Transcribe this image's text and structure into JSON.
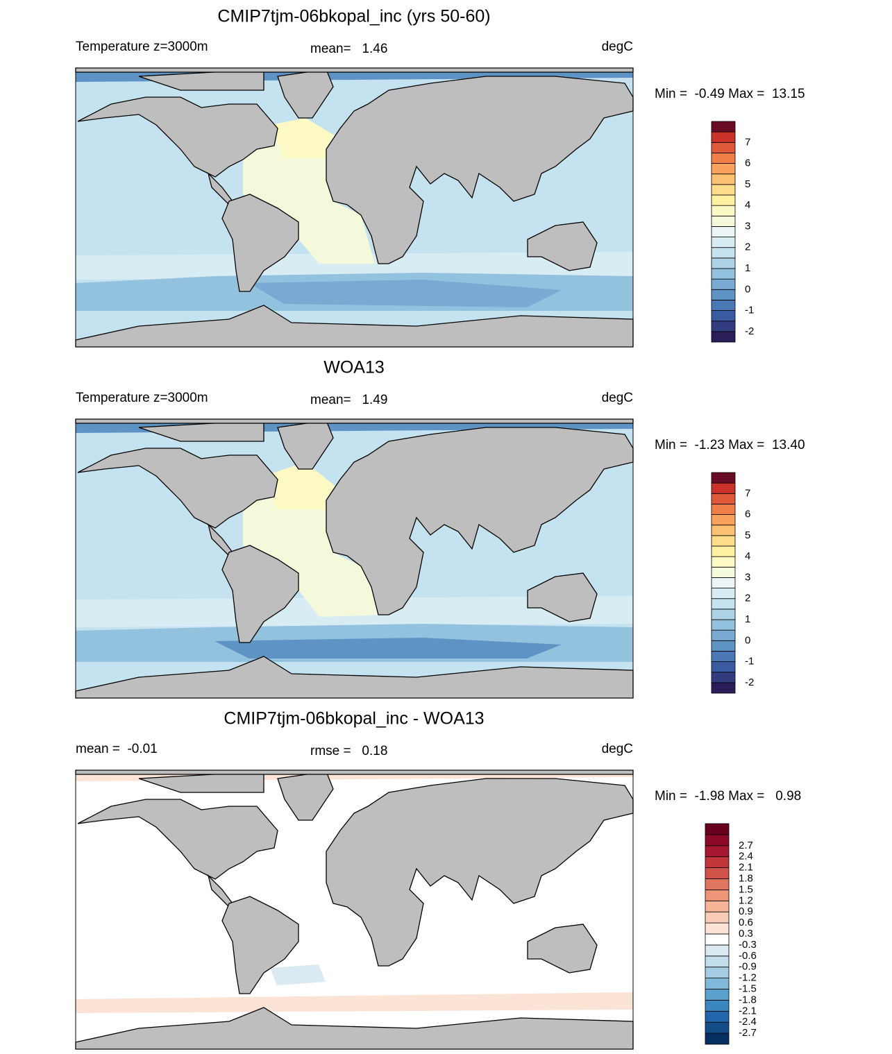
{
  "panels": [
    {
      "title": "CMIP7tjm-06bkopal_inc (yrs 50-60)",
      "left_text": "Temperature z=3000m",
      "center_text": "mean=   1.46",
      "units": "degC",
      "min_max": "Min =  -0.49 Max =  13.15",
      "colorbar": {
        "labels": [
          "-2",
          "-1",
          "0",
          "1",
          "2",
          "3",
          "4",
          "5",
          "6",
          "7"
        ],
        "colors": [
          "#2b1d5a",
          "#343c80",
          "#3b5ba1",
          "#4a78b5",
          "#5e93c5",
          "#78aad3",
          "#93c2df",
          "#aed3e7",
          "#c4e2ef",
          "#d8ecf4",
          "#ebf5f6",
          "#f4f9dc",
          "#fdf9c4",
          "#fff0a2",
          "#fedc89",
          "#fdc172",
          "#f9a25b",
          "#f07e47",
          "#df5a38",
          "#c93329",
          "#6b0c25"
        ]
      }
    },
    {
      "title": "WOA13",
      "left_text": "Temperature z=3000m",
      "center_text": "mean=   1.49",
      "units": "degC",
      "min_max": "Min =  -1.23 Max =  13.40",
      "colorbar": {
        "labels": [
          "-2",
          "-1",
          "0",
          "1",
          "2",
          "3",
          "4",
          "5",
          "6",
          "7"
        ],
        "colors": [
          "#2b1d5a",
          "#343c80",
          "#3b5ba1",
          "#4a78b5",
          "#5e93c5",
          "#78aad3",
          "#93c2df",
          "#aed3e7",
          "#c4e2ef",
          "#d8ecf4",
          "#ebf5f6",
          "#f4f9dc",
          "#fdf9c4",
          "#fff0a2",
          "#fedc89",
          "#fdc172",
          "#f9a25b",
          "#f07e47",
          "#df5a38",
          "#c93329",
          "#6b0c25"
        ]
      }
    },
    {
      "title": "CMIP7tjm-06bkopal_inc - WOA13",
      "left_text": "mean =  -0.01",
      "center_text": "rmse =   0.18",
      "units": "degC",
      "min_max": "Min =  -1.98 Max =   0.98",
      "colorbar": {
        "labels": [
          "-2.7",
          "-2.4",
          "-2.1",
          "-1.8",
          "-1.5",
          "-1.2",
          "-0.9",
          "-0.6",
          "-0.3",
          "0.3",
          "0.6",
          "0.9",
          "1.2",
          "1.5",
          "1.8",
          "2.1",
          "2.4",
          "2.7"
        ],
        "colors": [
          "#053061",
          "#134c87",
          "#2166ac",
          "#3a87bf",
          "#5aa1cd",
          "#80b9da",
          "#a5cce3",
          "#c2ddec",
          "#dbeaf2",
          "#ffffff",
          "#fbe3d6",
          "#f9cdb5",
          "#f6b596",
          "#ee9577",
          "#e07660",
          "#d1544a",
          "#c13639",
          "#a7172f",
          "#8b0a27",
          "#67001f"
        ]
      }
    }
  ]
}
